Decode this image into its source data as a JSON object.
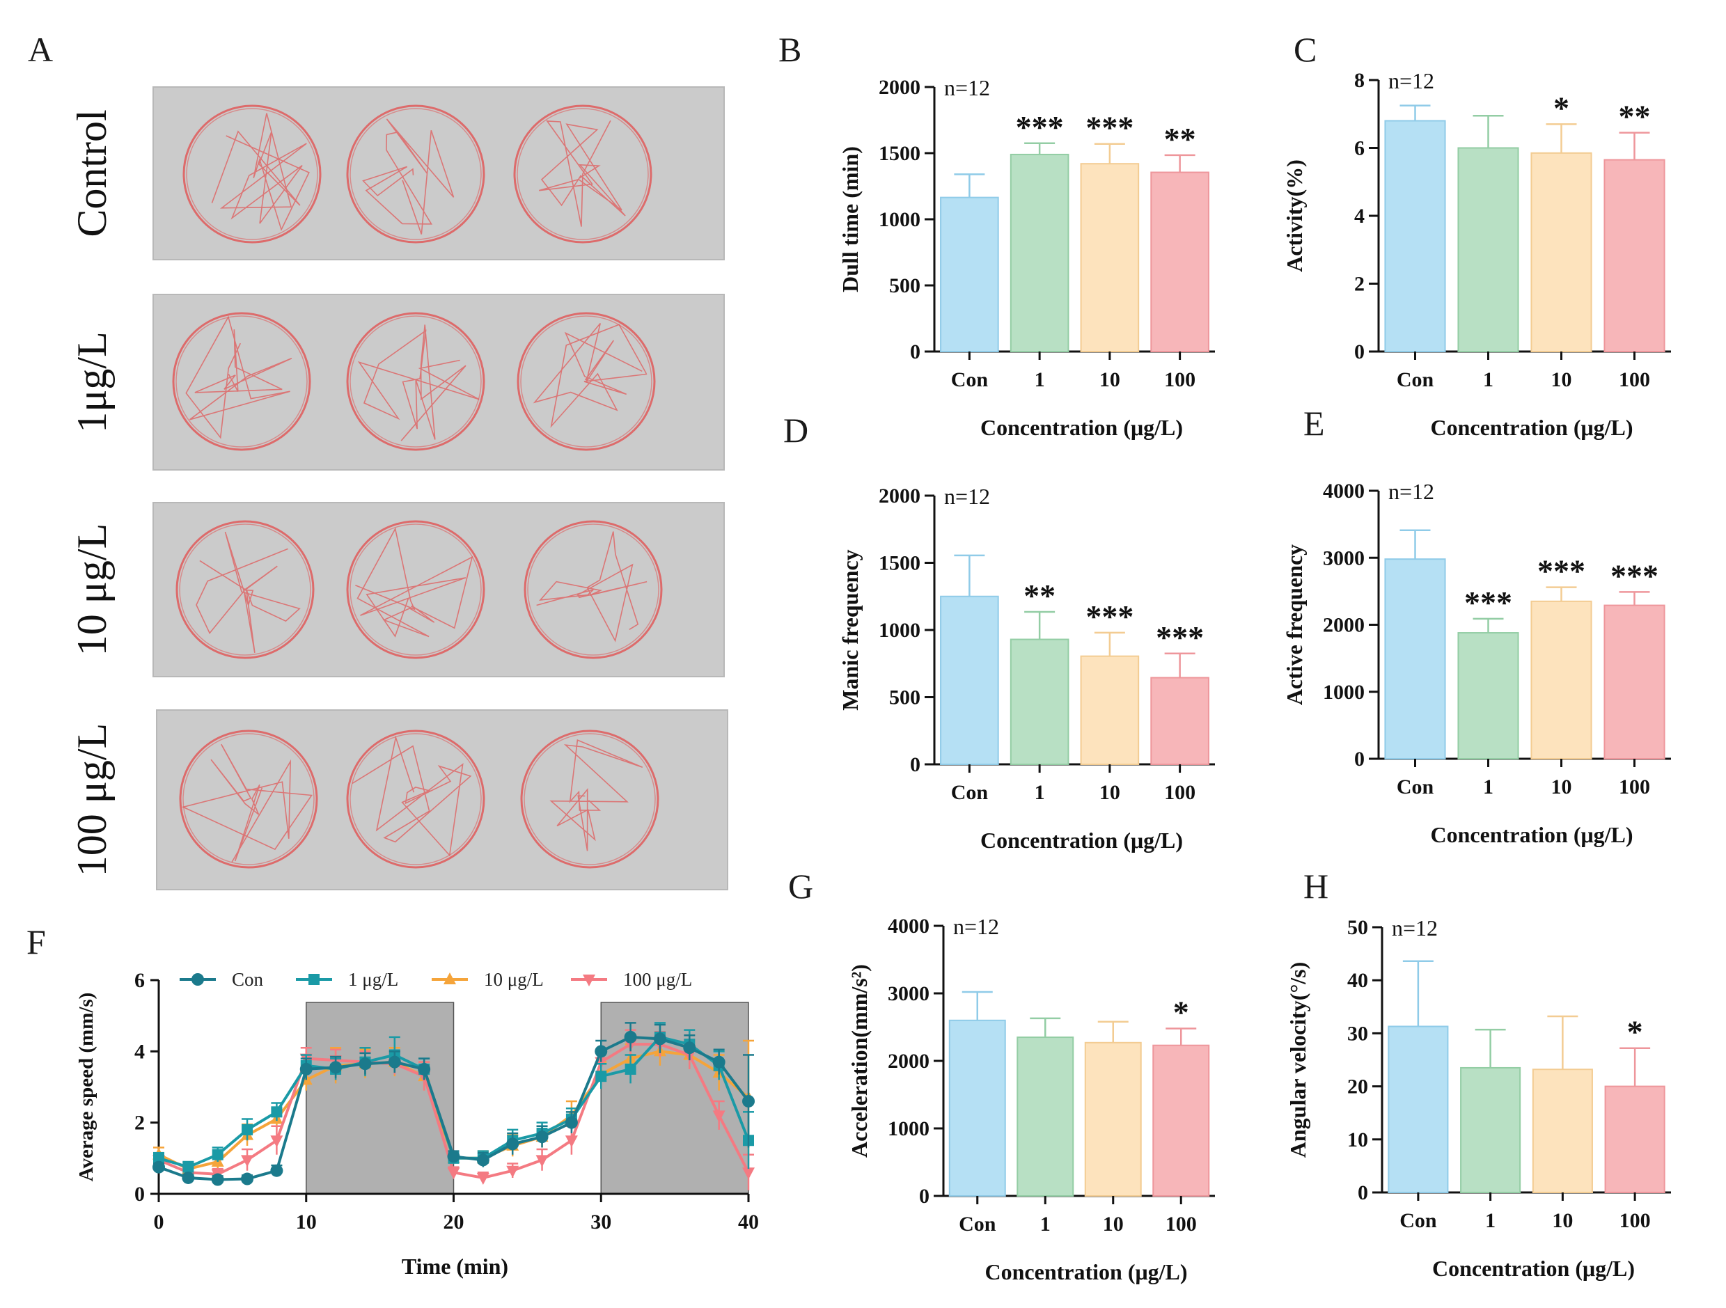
{
  "panel_a": {
    "letter": "A",
    "rows": [
      {
        "label": "Control"
      },
      {
        "label": "1μg/L"
      },
      {
        "label": "10 μg/L"
      },
      {
        "label": "100 μg/L"
      }
    ],
    "colors": {
      "arena": "#cbcbcb",
      "track": "#e05a5a"
    }
  },
  "colors": {
    "con": "#b5e0f4",
    "c1": "#b8e0c4",
    "c10": "#fde3bd",
    "c100": "#f7b6b9",
    "line_con": "#1b7a8c",
    "line_1": "#1a9aa6",
    "line_10": "#f5a43a",
    "line_100": "#f47a82",
    "shade": "#b0b0b0"
  },
  "chart_data": [
    {
      "id": "B",
      "letter": "B",
      "type": "bar",
      "categories": [
        "Con",
        "1",
        "10",
        "100"
      ],
      "values": [
        1165,
        1490,
        1420,
        1355
      ],
      "errors": [
        175,
        85,
        150,
        130
      ],
      "significance": [
        "",
        "***",
        "***",
        "**"
      ],
      "ylim": [
        0,
        2000
      ],
      "yticks": [
        0,
        500,
        1000,
        1500,
        2000
      ],
      "ylabel": "Dull time (min)",
      "xlabel": "Concentration (μg/L)",
      "n_label": "n=12"
    },
    {
      "id": "C",
      "letter": "C",
      "type": "bar",
      "categories": [
        "Con",
        "1",
        "10",
        "100"
      ],
      "values": [
        6.8,
        6.0,
        5.85,
        5.65
      ],
      "errors": [
        0.45,
        0.95,
        0.85,
        0.8
      ],
      "significance": [
        "",
        "",
        "*",
        "**"
      ],
      "ylim": [
        0,
        8
      ],
      "yticks": [
        0,
        2,
        4,
        6,
        8
      ],
      "ylabel": "Activity(%)",
      "xlabel": "Concentration (μg/L)",
      "n_label": "n=12"
    },
    {
      "id": "D",
      "letter": "D",
      "type": "bar",
      "categories": [
        "Con",
        "1",
        "10",
        "100"
      ],
      "values": [
        1250,
        930,
        805,
        645
      ],
      "errors": [
        305,
        205,
        175,
        180
      ],
      "significance": [
        "",
        "**",
        "***",
        "***"
      ],
      "ylim": [
        0,
        2000
      ],
      "yticks": [
        0,
        500,
        1000,
        1500,
        2000
      ],
      "ylabel": "Manic frequency",
      "xlabel": "Concentration (μg/L)",
      "n_label": "n=12"
    },
    {
      "id": "E",
      "letter": "E",
      "type": "bar",
      "categories": [
        "Con",
        "1",
        "10",
        "100"
      ],
      "values": [
        2980,
        1880,
        2350,
        2290
      ],
      "errors": [
        430,
        210,
        210,
        200
      ],
      "significance": [
        "",
        "***",
        "***",
        "***"
      ],
      "ylim": [
        0,
        4000
      ],
      "yticks": [
        0,
        1000,
        2000,
        3000,
        4000
      ],
      "ylabel": "Active frequency",
      "xlabel": "Concentration (μg/L)",
      "n_label": "n=12"
    },
    {
      "id": "F",
      "letter": "F",
      "type": "line",
      "x": [
        0,
        2,
        4,
        6,
        8,
        10,
        12,
        14,
        16,
        18,
        20,
        22,
        24,
        26,
        28,
        30,
        32,
        34,
        36,
        38,
        40
      ],
      "series": [
        {
          "name": "Con",
          "marker": "circle",
          "values": [
            0.75,
            0.45,
            0.4,
            0.42,
            0.65,
            3.5,
            3.55,
            3.65,
            3.7,
            3.5,
            1.05,
            0.95,
            1.4,
            1.6,
            2.0,
            4.0,
            4.4,
            4.35,
            4.1,
            3.7,
            2.6
          ],
          "errors": [
            0.1,
            0.1,
            0.1,
            0.1,
            0.15,
            0.3,
            0.3,
            0.3,
            0.3,
            0.3,
            0.15,
            0.2,
            0.3,
            0.3,
            0.3,
            0.3,
            0.4,
            0.4,
            0.35,
            0.35,
            1.3
          ]
        },
        {
          "name": "1 μg/L",
          "marker": "square",
          "values": [
            1.0,
            0.75,
            1.1,
            1.8,
            2.3,
            3.6,
            3.5,
            3.7,
            3.9,
            3.5,
            1.0,
            1.0,
            1.5,
            1.7,
            2.1,
            3.3,
            3.5,
            4.4,
            4.2,
            3.6,
            1.5
          ],
          "errors": [
            0.15,
            0.15,
            0.2,
            0.3,
            0.25,
            0.3,
            0.3,
            0.4,
            0.5,
            0.3,
            0.15,
            0.2,
            0.3,
            0.3,
            0.3,
            0.35,
            0.4,
            0.4,
            0.4,
            0.4,
            0.8
          ]
        },
        {
          "name": "10 μg/L",
          "marker": "triangle-up",
          "values": [
            1.1,
            0.7,
            0.9,
            1.65,
            2.1,
            3.2,
            3.6,
            3.65,
            3.7,
            3.3,
            1.0,
            1.0,
            1.35,
            1.6,
            2.2,
            3.35,
            3.8,
            4.0,
            3.9,
            3.4,
            2.7
          ],
          "errors": [
            0.2,
            0.15,
            0.2,
            0.3,
            0.3,
            0.3,
            0.5,
            0.4,
            0.4,
            0.4,
            0.15,
            0.2,
            0.3,
            0.3,
            0.4,
            0.35,
            0.4,
            0.4,
            0.4,
            0.5,
            1.6
          ]
        },
        {
          "name": "100 μg/L",
          "marker": "triangle-down",
          "values": [
            0.95,
            0.6,
            0.55,
            0.95,
            1.5,
            3.8,
            3.75,
            3.7,
            3.65,
            3.3,
            0.6,
            0.45,
            0.65,
            0.95,
            1.5,
            3.7,
            4.2,
            4.2,
            3.9,
            2.2,
            0.6
          ],
          "errors": [
            0.15,
            0.1,
            0.15,
            0.3,
            0.4,
            0.3,
            0.3,
            0.3,
            0.3,
            0.4,
            0.15,
            0.15,
            0.2,
            0.3,
            0.4,
            0.35,
            0.4,
            0.35,
            0.4,
            0.4,
            0.5
          ]
        }
      ],
      "shaded_intervals": [
        [
          10,
          20
        ],
        [
          30,
          40
        ]
      ],
      "xlim": [
        0,
        40
      ],
      "xticks": [
        0,
        10,
        20,
        30,
        40
      ],
      "ylim": [
        0,
        6
      ],
      "yticks": [
        0,
        2,
        4,
        6
      ],
      "xlabel": "Time (min)",
      "ylabel": "Average speed (mm/s)",
      "legend_position": "top"
    },
    {
      "id": "G",
      "letter": "G",
      "type": "bar",
      "categories": [
        "Con",
        "1",
        "10",
        "100"
      ],
      "values": [
        2600,
        2350,
        2270,
        2230
      ],
      "errors": [
        420,
        280,
        310,
        250
      ],
      "significance": [
        "",
        "",
        "",
        "*"
      ],
      "ylim": [
        0,
        4000
      ],
      "yticks": [
        0,
        1000,
        2000,
        3000,
        4000
      ],
      "ylabel": "Acceleration(mm/s²)",
      "xlabel": "Concentration (μg/L)",
      "n_label": "n=12"
    },
    {
      "id": "H",
      "letter": "H",
      "type": "bar",
      "categories": [
        "Con",
        "1",
        "10",
        "100"
      ],
      "values": [
        31.3,
        23.5,
        23.2,
        20.0
      ],
      "errors": [
        12.3,
        7.2,
        10.0,
        7.2
      ],
      "significance": [
        "",
        "",
        "",
        "*"
      ],
      "ylim": [
        0,
        50
      ],
      "yticks": [
        0,
        10,
        20,
        30,
        40,
        50
      ],
      "ylabel": "Angular velocity(°/s)",
      "xlabel": "Concentration (μg/L)",
      "n_label": "n=12"
    }
  ]
}
